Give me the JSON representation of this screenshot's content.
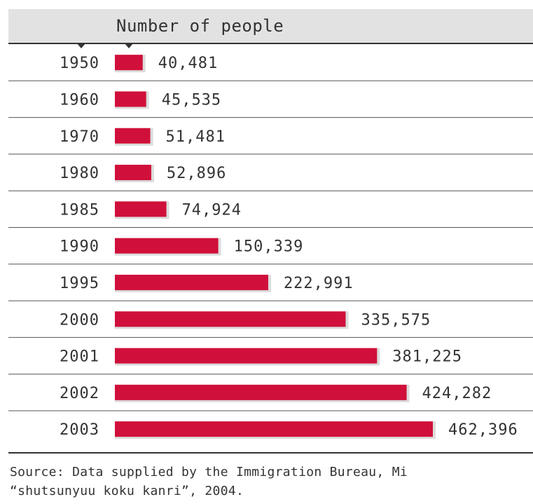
{
  "chart_data": {
    "type": "bar",
    "orientation": "horizontal",
    "title": "Number of people",
    "categories": [
      "1950",
      "1960",
      "1970",
      "1980",
      "1985",
      "1990",
      "1995",
      "2000",
      "2001",
      "2002",
      "2003"
    ],
    "values": [
      40481,
      45535,
      51481,
      52896,
      74924,
      150339,
      222991,
      335575,
      381225,
      424282,
      462396
    ],
    "value_labels": [
      "40,481",
      "45,535",
      "51,481",
      "52,896",
      "74,924",
      "150,339",
      "222,991",
      "335,575",
      "381,225",
      "424,282",
      "462,396"
    ],
    "bar_color": "#d0103a",
    "bar_shadow_color": "#dcdcdc",
    "grid": false
  },
  "source": {
    "line1": "Source: Data supplied by the Immigration Bureau, Mi",
    "line2": "“shutsunyuu koku kanri”, 2004."
  }
}
